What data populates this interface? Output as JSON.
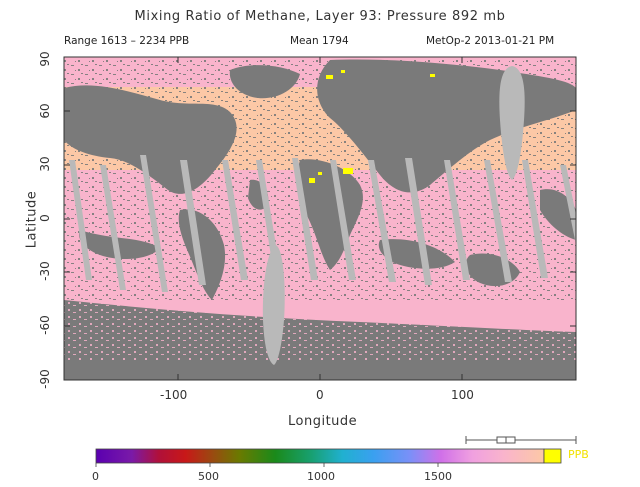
{
  "title": "Mixing Ratio of Methane, Layer 93: Pressure 892 mb",
  "range_text": "Range 1613 – 2234 PPB",
  "mean_text": "Mean 1794",
  "source_text": "MetOp-2 2013-01-21 PM",
  "x_axis": {
    "label": "Longitude",
    "ticks": [
      "-100",
      "0",
      "100"
    ]
  },
  "y_axis": {
    "label": "Latitude",
    "ticks": [
      "90",
      "60",
      "30",
      "0",
      "-30",
      "-60",
      "-90"
    ]
  },
  "colorbar": {
    "ticks": [
      "0",
      "500",
      "1000",
      "1500"
    ],
    "unit": "PPB"
  },
  "colors": {
    "no_data": "#7a7a7a",
    "orbit_gap": "#b9b9b9",
    "low_band": "#f9b4cc",
    "high_band": "#fcc8a6",
    "max": "#ffff00"
  },
  "chart_data": {
    "type": "heatmap",
    "x_range": [
      -180,
      180
    ],
    "y_range": [
      -90,
      90
    ],
    "value_range": [
      1613,
      2234
    ],
    "mean": 1794,
    "units": "PPB",
    "colorbar_range": [
      0,
      1800
    ]
  }
}
